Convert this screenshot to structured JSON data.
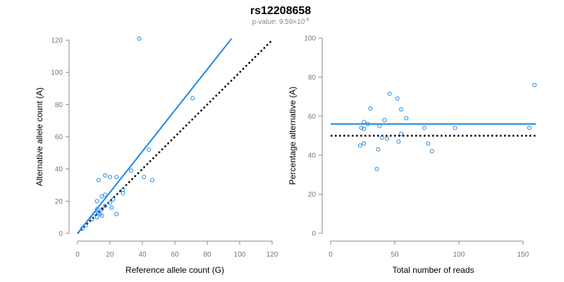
{
  "title": "rs12208658",
  "subtitle_prefix": "p-value: 9.59×10",
  "subtitle_exponent": "-6",
  "colors": {
    "points": "#1e88e5",
    "fit_line": "#1e88e5",
    "reference_line": "#000000"
  },
  "chart_data": [
    {
      "type": "scatter",
      "title": "",
      "xlabel": "Reference allele count (G)",
      "ylabel": "Alternative allele count (A)",
      "xlim": [
        0,
        120
      ],
      "ylim": [
        0,
        120
      ],
      "xticks": [
        0,
        20,
        40,
        60,
        80,
        100,
        120
      ],
      "yticks": [
        0,
        20,
        40,
        60,
        80,
        100,
        120
      ],
      "grid": false,
      "points": [
        [
          38,
          121
        ],
        [
          71,
          84
        ],
        [
          44,
          52
        ],
        [
          33,
          39
        ],
        [
          17,
          36
        ],
        [
          13,
          33
        ],
        [
          20,
          35
        ],
        [
          24,
          35
        ],
        [
          41,
          35
        ],
        [
          46,
          33
        ],
        [
          28,
          27
        ],
        [
          28,
          25
        ],
        [
          17,
          24
        ],
        [
          15,
          23
        ],
        [
          22,
          21
        ],
        [
          12,
          20
        ],
        [
          20,
          19
        ],
        [
          17,
          17
        ],
        [
          21,
          16
        ],
        [
          12,
          15
        ],
        [
          15,
          15
        ],
        [
          13,
          13
        ],
        [
          24,
          12
        ],
        [
          14,
          12
        ],
        [
          11,
          12
        ],
        [
          12,
          10
        ],
        [
          15,
          11
        ],
        [
          5,
          5
        ],
        [
          3,
          3
        ],
        [
          9,
          9
        ]
      ],
      "fit_line": {
        "x": [
          0,
          95
        ],
        "y": [
          0,
          121
        ]
      },
      "reference_line": {
        "x": [
          0,
          120
        ],
        "y": [
          0,
          120
        ]
      }
    },
    {
      "type": "scatter",
      "title": "",
      "xlabel": "Total number of reads",
      "ylabel": "Percentage alternative (A)",
      "xlim": [
        0,
        160
      ],
      "ylim": [
        0,
        100
      ],
      "xticks": [
        0,
        50,
        100,
        150
      ],
      "yticks": [
        0,
        20,
        40,
        60,
        80,
        100
      ],
      "grid": false,
      "points": [
        [
          159,
          76
        ],
        [
          46,
          71.5
        ],
        [
          52,
          69
        ],
        [
          31,
          64
        ],
        [
          55,
          63.5
        ],
        [
          59,
          59
        ],
        [
          42,
          58
        ],
        [
          26,
          57
        ],
        [
          29,
          56
        ],
        [
          38,
          55
        ],
        [
          24,
          54
        ],
        [
          26,
          53.5
        ],
        [
          73,
          54
        ],
        [
          97,
          54
        ],
        [
          155,
          54
        ],
        [
          55,
          51
        ],
        [
          40,
          49
        ],
        [
          44,
          48.5
        ],
        [
          53,
          47
        ],
        [
          26,
          46
        ],
        [
          23,
          45
        ],
        [
          76,
          46
        ],
        [
          79,
          42
        ],
        [
          37,
          43
        ],
        [
          36,
          33
        ]
      ],
      "fit_line": {
        "x": [
          0,
          160
        ],
        "y": [
          56,
          56
        ]
      },
      "reference_line": {
        "x": [
          0,
          160
        ],
        "y": [
          50,
          50
        ]
      }
    }
  ]
}
